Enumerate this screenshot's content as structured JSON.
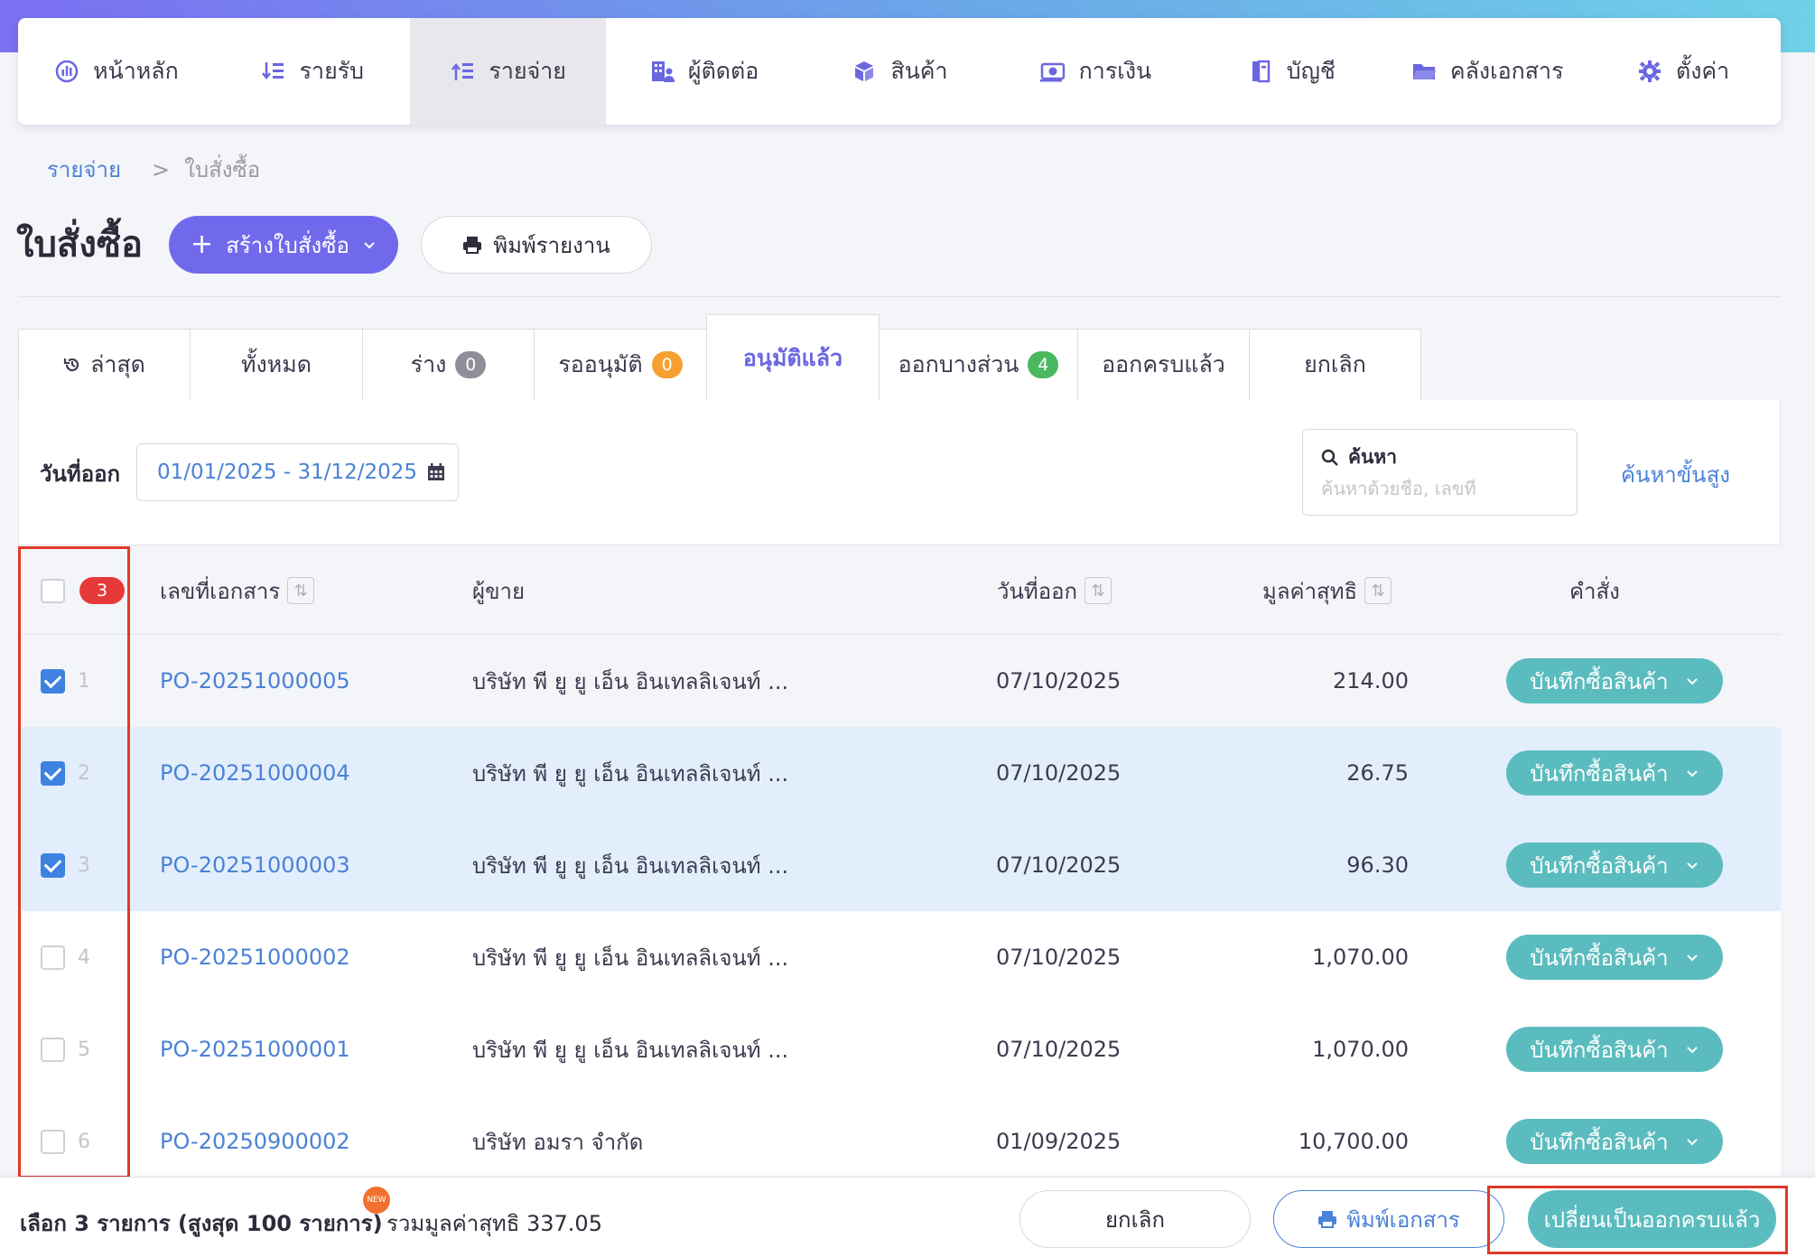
{
  "nav": {
    "items": [
      {
        "label": "หน้าหลัก",
        "icon": "dashboard-icon"
      },
      {
        "label": "รายรับ",
        "icon": "income-icon"
      },
      {
        "label": "รายจ่าย",
        "icon": "expense-icon"
      },
      {
        "label": "ผู้ติดต่อ",
        "icon": "contacts-icon"
      },
      {
        "label": "สินค้า",
        "icon": "product-box-icon"
      },
      {
        "label": "การเงิน",
        "icon": "money-icon"
      },
      {
        "label": "บัญชี",
        "icon": "ledger-book-icon"
      },
      {
        "label": "คลังเอกสาร",
        "icon": "folder-icon"
      },
      {
        "label": "ตั้งค่า",
        "icon": "gear-icon"
      }
    ],
    "active_index": 2
  },
  "breadcrumb": {
    "parent": "รายจ่าย",
    "separator": ">",
    "current": "ใบสั่งซื้อ"
  },
  "page": {
    "title": "ใบสั่งซื้อ",
    "create_button": "สร้างใบสั่งซื้อ",
    "print_report_button": "พิมพ์รายงาน"
  },
  "tabs": [
    {
      "label": "ล่าสุด"
    },
    {
      "label": "ทั้งหมด"
    },
    {
      "label": "ร่าง",
      "badge": "0"
    },
    {
      "label": "รออนุมัติ",
      "badge": "0"
    },
    {
      "label": "อนุมัติแล้ว"
    },
    {
      "label": "ออกบางส่วน",
      "badge": "4"
    },
    {
      "label": "ออกครบแล้ว"
    },
    {
      "label": "ยกเลิก"
    }
  ],
  "filter": {
    "date_label": "วันที่ออก",
    "date_range": "01/01/2025 - 31/12/2025",
    "search_label": "ค้นหา",
    "search_placeholder": "ค้นหาด้วยชื่อ, เลขที่",
    "advanced_search": "ค้นหาขั้นสูง"
  },
  "table": {
    "selected_count": "3",
    "headers": {
      "doc_no": "เลขที่เอกสาร",
      "vendor": "ผู้ขาย",
      "issue_date": "วันที่ออก",
      "net_value": "มูลค่าสุทธิ",
      "action": "คำสั่ง"
    },
    "action_label": "บันทึกซื้อสินค้า",
    "rows": [
      {
        "no": "1",
        "doc_no": "PO-20251000005",
        "vendor": "บริษัท พี ยู ยู เอ็น อินเทลลิเจนท์ ...",
        "date": "07/10/2025",
        "amount": "214.00",
        "checked": true
      },
      {
        "no": "2",
        "doc_no": "PO-20251000004",
        "vendor": "บริษัท พี ยู ยู เอ็น อินเทลลิเจนท์ ...",
        "date": "07/10/2025",
        "amount": "26.75",
        "checked": true
      },
      {
        "no": "3",
        "doc_no": "PO-20251000003",
        "vendor": "บริษัท พี ยู ยู เอ็น อินเทลลิเจนท์ ...",
        "date": "07/10/2025",
        "amount": "96.30",
        "checked": true
      },
      {
        "no": "4",
        "doc_no": "PO-20251000002",
        "vendor": "บริษัท พี ยู ยู เอ็น อินเทลลิเจนท์ ...",
        "date": "07/10/2025",
        "amount": "1,070.00",
        "checked": false
      },
      {
        "no": "5",
        "doc_no": "PO-20251000001",
        "vendor": "บริษัท พี ยู ยู เอ็น อินเทลลิเจนท์ ...",
        "date": "07/10/2025",
        "amount": "1,070.00",
        "checked": false
      },
      {
        "no": "6",
        "doc_no": "PO-20250900002",
        "vendor": "บริษัท อมรา จำกัด",
        "date": "01/09/2025",
        "amount": "10,700.00",
        "checked": false
      }
    ]
  },
  "footer": {
    "selection_text": "เลือก 3 รายการ (สูงสุด 100 รายการ)",
    "new_tag": "NEW",
    "sum_text": "รวมมูลค่าสุทธิ 337.05",
    "cancel_button": "ยกเลิก",
    "print_button": "พิมพ์เอกสาร",
    "complete_button": "เปลี่ยนเป็นออกครบแล้ว"
  },
  "colors": {
    "primary": "#7169ec",
    "teal": "#5bbcbf",
    "link": "#4a82d6",
    "badge_gray": "#8f8f99",
    "badge_orange": "#f5a030",
    "badge_green": "#4bb860",
    "alert_red": "#e63a3a",
    "highlight": "#e03a2a"
  }
}
